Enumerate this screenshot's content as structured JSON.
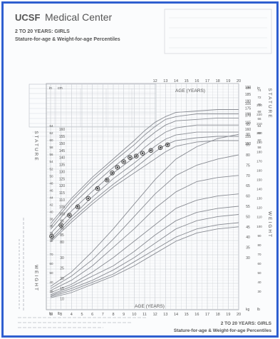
{
  "header": {
    "org_name_prefix": "UCSF",
    "org_name": "Medical Center",
    "chart_title_line1": "2 TO 20 YEARS: GIRLS",
    "chart_title_line2": "Stature-for-age & Weight-for-age Percentiles"
  },
  "footer": {
    "line1": "2 TO 20 YEARS: GIRLS",
    "line2": "Stature-for-age & Weight-for-age Percentiles"
  },
  "colors": {
    "frame": "#2f5fd0",
    "grid": "#c9ccd2",
    "curve": "#8a8d94",
    "point": "#444444"
  },
  "chart_data": {
    "type": "scatter",
    "title": "Stature-for-age & Weight-for-age Percentiles",
    "age_axis_label": "AGE (YEARS)",
    "stature_axis_label": "STATURE",
    "weight_axis_label": "WEIGHT",
    "age_ticks": [
      2,
      3,
      4,
      5,
      6,
      7,
      8,
      9,
      10,
      11,
      12,
      13,
      14,
      15,
      16,
      17,
      18,
      19,
      20
    ],
    "stature_ticks_cm": [
      80,
      85,
      90,
      95,
      100,
      105,
      110,
      115,
      120,
      125,
      130,
      135,
      140,
      145,
      150,
      155,
      160
    ],
    "stature_ticks_cm_upper": [
      150,
      155,
      160,
      165,
      170,
      175,
      180,
      185,
      190
    ],
    "stature_ticks_in": [
      30,
      32,
      34,
      36,
      38,
      40,
      42,
      44,
      46,
      48,
      50,
      52,
      54,
      56,
      58,
      60,
      62,
      64,
      66,
      68,
      70,
      72,
      74,
      76
    ],
    "weight_ticks_kg": [
      10,
      15,
      20,
      25,
      30
    ],
    "weight_ticks_kg_right": [
      30,
      35,
      40,
      45,
      50,
      55,
      60,
      65,
      70,
      75,
      80,
      85,
      90,
      95,
      100,
      105
    ],
    "weight_ticks_lb": [
      30,
      40,
      50,
      60,
      70,
      80,
      90,
      100,
      110,
      120,
      130,
      140,
      150,
      160,
      170,
      180,
      190,
      200,
      210,
      220,
      230
    ],
    "unit_labels": [
      "cm",
      "in",
      "kg",
      "lb"
    ],
    "xlim": [
      2,
      20
    ],
    "stature_ylim_cm": [
      77,
      192
    ],
    "weight_ylim_kg": [
      5,
      105
    ],
    "grid": true,
    "series": [
      {
        "values_x_age": [
          2.1,
          3.0,
          3.8,
          4.6,
          5.6,
          6.5,
          7.4,
          7.9,
          8.4,
          9.0,
          9.6,
          10.2,
          10.8,
          11.6,
          12.5,
          13.2
        ],
        "values_y_cm": [
          84,
          92,
          99,
          105,
          111,
          118,
          124,
          129,
          133,
          137,
          140,
          141,
          143,
          145,
          147,
          149
        ]
      }
    ],
    "percentile_curves_cm": [
      {
        "x": [
          2,
          4,
          6,
          8,
          10,
          11,
          12,
          13,
          14,
          16,
          18,
          20
        ],
        "y": [
          80,
          94,
          107,
          119,
          129,
          134,
          139,
          144,
          148,
          151,
          152,
          152
        ]
      },
      {
        "x": [
          2,
          4,
          6,
          8,
          10,
          11,
          12,
          13,
          14,
          16,
          18,
          20
        ],
        "y": [
          81,
          96,
          109,
          121,
          132,
          138,
          144,
          149,
          152,
          154,
          155,
          155
        ]
      },
      {
        "x": [
          2,
          4,
          6,
          8,
          10,
          11,
          12,
          13,
          14,
          16,
          18,
          20
        ],
        "y": [
          83,
          98,
          112,
          125,
          136,
          142,
          148,
          153,
          156,
          158,
          158,
          158
        ]
      },
      {
        "x": [
          2,
          4,
          6,
          8,
          10,
          11,
          12,
          13,
          14,
          16,
          18,
          20
        ],
        "y": [
          86,
          102,
          116,
          129,
          140,
          147,
          153,
          158,
          161,
          163,
          163,
          163
        ]
      },
      {
        "x": [
          2,
          4,
          6,
          8,
          10,
          11,
          12,
          13,
          14,
          16,
          18,
          20
        ],
        "y": [
          89,
          106,
          120,
          133,
          145,
          152,
          158,
          163,
          166,
          167,
          168,
          168
        ]
      },
      {
        "x": [
          2,
          4,
          6,
          8,
          10,
          11,
          12,
          13,
          14,
          16,
          18,
          20
        ],
        "y": [
          91,
          109,
          124,
          137,
          149,
          156,
          162,
          167,
          169,
          171,
          171,
          171
        ]
      },
      {
        "x": [
          2,
          4,
          6,
          8,
          10,
          11,
          12,
          13,
          14,
          16,
          18,
          20
        ],
        "y": [
          93,
          111,
          126,
          139,
          152,
          159,
          165,
          169,
          172,
          173,
          174,
          174
        ]
      }
    ],
    "percentile_curves_kg": [
      {
        "x": [
          2,
          4,
          6,
          8,
          10,
          12,
          14,
          16,
          18,
          20
        ],
        "y": [
          10.5,
          13,
          17,
          21,
          26,
          32,
          38,
          42,
          44,
          45
        ]
      },
      {
        "x": [
          2,
          4,
          6,
          8,
          10,
          12,
          14,
          16,
          18,
          20
        ],
        "y": [
          11,
          14,
          18,
          22,
          28,
          34,
          40,
          44,
          46,
          47
        ]
      },
      {
        "x": [
          2,
          4,
          6,
          8,
          10,
          12,
          14,
          16,
          18,
          20
        ],
        "y": [
          11.5,
          15,
          19,
          24,
          30,
          37,
          44,
          48,
          50,
          51
        ]
      },
      {
        "x": [
          2,
          4,
          6,
          8,
          10,
          12,
          14,
          16,
          18,
          20
        ],
        "y": [
          12,
          16,
          21,
          26,
          33,
          41,
          48,
          52,
          54,
          55
        ]
      },
      {
        "x": [
          2,
          4,
          6,
          8,
          10,
          12,
          14,
          16,
          18,
          20
        ],
        "y": [
          13,
          17,
          23,
          30,
          38,
          46,
          54,
          58,
          60,
          61
        ]
      },
      {
        "x": [
          2,
          4,
          6,
          8,
          10,
          12,
          14,
          16,
          18,
          20
        ],
        "y": [
          14,
          19,
          26,
          35,
          44,
          54,
          62,
          67,
          69,
          70
        ]
      },
      {
        "x": [
          2,
          4,
          6,
          8,
          10,
          12,
          14,
          16,
          18,
          20
        ],
        "y": [
          15,
          21,
          29,
          39,
          50,
          61,
          70,
          75,
          78,
          80
        ]
      },
      {
        "x": [
          2,
          4,
          6,
          8,
          10,
          12,
          14,
          16,
          18,
          20
        ],
        "y": [
          16,
          23,
          33,
          44,
          56,
          68,
          78,
          84,
          88,
          90
        ]
      }
    ]
  }
}
